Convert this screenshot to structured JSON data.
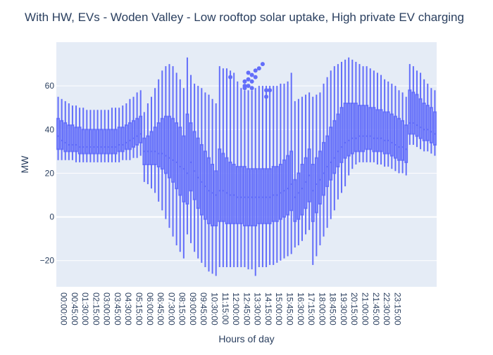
{
  "chart_data": {
    "type": "box",
    "title": "With HW, EVs - Woden Valley - Low rooftop solar uptake, High private EV charging",
    "xlabel": "Hours of day",
    "ylabel": "MW",
    "ylim": [
      -32,
      80
    ],
    "yticks": [
      -20,
      0,
      20,
      40,
      60
    ],
    "grid": true,
    "x_tick_labels": [
      "00:00:00",
      "00:45:00",
      "01:30:00",
      "02:15:00",
      "03:00:00",
      "03:45:00",
      "04:30:00",
      "05:15:00",
      "06:00:00",
      "06:45:00",
      "07:30:00",
      "08:15:00",
      "09:00:00",
      "09:45:00",
      "10:30:00",
      "11:15:00",
      "12:00:00",
      "12:45:00",
      "13:30:00",
      "14:15:00",
      "15:00:00",
      "15:45:00",
      "16:30:00",
      "17:15:00",
      "18:00:00",
      "18:45:00",
      "19:30:00",
      "20:15:00",
      "21:00:00",
      "21:45:00",
      "22:30:00",
      "23:15:00"
    ],
    "x_tick_every": 3,
    "colors": {
      "series": "#636efa",
      "plot_bg": "#e5ecf6",
      "grid": "#ffffff",
      "text": "#2a3f5f"
    },
    "boxes": [
      {
        "min": 26,
        "q1": 31,
        "median": 37,
        "q3": 45,
        "max": 55
      },
      {
        "min": 26,
        "q1": 31,
        "median": 35,
        "q3": 44,
        "max": 54
      },
      {
        "min": 26,
        "q1": 30,
        "median": 34,
        "q3": 43,
        "max": 53
      },
      {
        "min": 26,
        "q1": 30,
        "median": 33,
        "q3": 42,
        "max": 52
      },
      {
        "min": 26,
        "q1": 30,
        "median": 33,
        "q3": 42,
        "max": 51
      },
      {
        "min": 25,
        "q1": 30,
        "median": 33,
        "q3": 41,
        "max": 51
      },
      {
        "min": 25,
        "q1": 29,
        "median": 32,
        "q3": 41,
        "max": 50
      },
      {
        "min": 25,
        "q1": 29,
        "median": 32,
        "q3": 40,
        "max": 50
      },
      {
        "min": 25,
        "q1": 29,
        "median": 32,
        "q3": 40,
        "max": 49
      },
      {
        "min": 25,
        "q1": 29,
        "median": 32,
        "q3": 40,
        "max": 49
      },
      {
        "min": 25,
        "q1": 29,
        "median": 32,
        "q3": 40,
        "max": 49
      },
      {
        "min": 25,
        "q1": 29,
        "median": 32,
        "q3": 40,
        "max": 49
      },
      {
        "min": 25,
        "q1": 29,
        "median": 32,
        "q3": 40,
        "max": 49
      },
      {
        "min": 25,
        "q1": 29,
        "median": 32,
        "q3": 40,
        "max": 49
      },
      {
        "min": 25,
        "q1": 29,
        "median": 32,
        "q3": 40,
        "max": 49
      },
      {
        "min": 25,
        "q1": 29,
        "median": 32,
        "q3": 40,
        "max": 50
      },
      {
        "min": 25,
        "q1": 29,
        "median": 32,
        "q3": 40,
        "max": 50
      },
      {
        "min": 25,
        "q1": 30,
        "median": 33,
        "q3": 41,
        "max": 50
      },
      {
        "min": 26,
        "q1": 30,
        "median": 33,
        "q3": 41,
        "max": 51
      },
      {
        "min": 26,
        "q1": 31,
        "median": 34,
        "q3": 42,
        "max": 52
      },
      {
        "min": 26,
        "q1": 31,
        "median": 35,
        "q3": 43,
        "max": 54
      },
      {
        "min": 27,
        "q1": 32,
        "median": 36,
        "q3": 44,
        "max": 55
      },
      {
        "min": 27,
        "q1": 33,
        "median": 37,
        "q3": 45,
        "max": 57
      },
      {
        "min": 28,
        "q1": 34,
        "median": 38,
        "q3": 46,
        "max": 58
      },
      {
        "min": 16,
        "q1": 24,
        "median": 30,
        "q3": 36,
        "max": 48
      },
      {
        "min": 15,
        "q1": 24,
        "median": 30,
        "q3": 37,
        "max": 52
      },
      {
        "min": 13,
        "q1": 24,
        "median": 30,
        "q3": 39,
        "max": 55
      },
      {
        "min": 11,
        "q1": 24,
        "median": 30,
        "q3": 41,
        "max": 59
      },
      {
        "min": 7,
        "q1": 23,
        "median": 29,
        "q3": 43,
        "max": 63
      },
      {
        "min": 3,
        "q1": 22,
        "median": 29,
        "q3": 45,
        "max": 67
      },
      {
        "min": -1,
        "q1": 20,
        "median": 28,
        "q3": 46,
        "max": 69
      },
      {
        "min": -5,
        "q1": 18,
        "median": 27,
        "q3": 46,
        "max": 70
      },
      {
        "min": -9,
        "q1": 16,
        "median": 26,
        "q3": 45,
        "max": 69
      },
      {
        "min": -13,
        "q1": 13,
        "median": 25,
        "q3": 43,
        "max": 66
      },
      {
        "min": -16,
        "q1": 10,
        "median": 23,
        "q3": 41,
        "max": 63
      },
      {
        "min": -19,
        "q1": 7,
        "median": 22,
        "q3": 37,
        "max": 59
      },
      {
        "min": -8,
        "q1": 6,
        "median": 20,
        "q3": 47,
        "max": 73
      },
      {
        "min": -12,
        "q1": 12,
        "median": 25,
        "q3": 43,
        "max": 65
      },
      {
        "min": -16,
        "q1": 8,
        "median": 21,
        "q3": 39,
        "max": 61
      },
      {
        "min": -19,
        "q1": 4,
        "median": 18,
        "q3": 36,
        "max": 60
      },
      {
        "min": -21,
        "q1": 1,
        "median": 16,
        "q3": 33,
        "max": 59
      },
      {
        "min": -23,
        "q1": -1,
        "median": 14,
        "q3": 30,
        "max": 57
      },
      {
        "min": -25,
        "q1": -3,
        "median": 12,
        "q3": 27,
        "max": 56
      },
      {
        "min": -26,
        "q1": -4,
        "median": 11,
        "q3": 24,
        "max": 54
      },
      {
        "min": -27,
        "q1": -4,
        "median": 10,
        "q3": 21,
        "max": 52
      },
      {
        "min": -23,
        "q1": -2,
        "median": 12,
        "q3": 31,
        "max": 69
      },
      {
        "min": -23,
        "q1": -2,
        "median": 12,
        "q3": 29,
        "max": 68
      },
      {
        "min": -23,
        "q1": -3,
        "median": 11,
        "q3": 27,
        "max": 68
      },
      {
        "min": -23,
        "q1": -3,
        "median": 10,
        "q3": 25,
        "max": 67
      },
      {
        "min": -23,
        "q1": -3,
        "median": 10,
        "q3": 24,
        "max": 66
      },
      {
        "min": -23,
        "q1": -3,
        "median": 9,
        "q3": 23,
        "max": 62
      },
      {
        "min": -23,
        "q1": -3,
        "median": 9,
        "q3": 23,
        "max": 59
      },
      {
        "min": -23,
        "q1": -4,
        "median": 9,
        "q3": 23,
        "max": 58
      },
      {
        "min": -24,
        "q1": -4,
        "median": 9,
        "q3": 22,
        "max": 58
      },
      {
        "min": -24,
        "q1": -4,
        "median": 9,
        "q3": 22,
        "max": 58
      },
      {
        "min": -27,
        "q1": -4,
        "median": 9,
        "q3": 22,
        "max": 59
      },
      {
        "min": -23,
        "q1": -3,
        "median": 9,
        "q3": 22,
        "max": 60
      },
      {
        "min": -23,
        "q1": -3,
        "median": 9,
        "q3": 22,
        "max": 60
      },
      {
        "min": -23,
        "q1": -3,
        "median": 9,
        "q3": 22,
        "max": 60
      },
      {
        "min": -22,
        "q1": -3,
        "median": 9,
        "q3": 22,
        "max": 60
      },
      {
        "min": -22,
        "q1": -2,
        "median": 10,
        "q3": 23,
        "max": 60
      },
      {
        "min": -21,
        "q1": -2,
        "median": 10,
        "q3": 23,
        "max": 60
      },
      {
        "min": -20,
        "q1": -1,
        "median": 11,
        "q3": 24,
        "max": 61
      },
      {
        "min": -19,
        "q1": 0,
        "median": 12,
        "q3": 26,
        "max": 61
      },
      {
        "min": -18,
        "q1": 1,
        "median": 13,
        "q3": 28,
        "max": 62
      },
      {
        "min": -17,
        "q1": 3,
        "median": 15,
        "q3": 30,
        "max": 66
      },
      {
        "min": -14,
        "q1": -2,
        "median": 9,
        "q3": 17,
        "max": 53
      },
      {
        "min": -13,
        "q1": -1,
        "median": 11,
        "q3": 20,
        "max": 54
      },
      {
        "min": -11,
        "q1": 1,
        "median": 13,
        "q3": 24,
        "max": 55
      },
      {
        "min": -8,
        "q1": 4,
        "median": 16,
        "q3": 27,
        "max": 56
      },
      {
        "min": -6,
        "q1": 7,
        "median": 19,
        "q3": 31,
        "max": 57
      },
      {
        "min": -22,
        "q1": -2,
        "median": 12,
        "q3": 24,
        "max": 55
      },
      {
        "min": -18,
        "q1": 2,
        "median": 15,
        "q3": 27,
        "max": 56
      },
      {
        "min": -13,
        "q1": 6,
        "median": 17,
        "q3": 30,
        "max": 57
      },
      {
        "min": -9,
        "q1": 10,
        "median": 20,
        "q3": 34,
        "max": 61
      },
      {
        "min": -5,
        "q1": 14,
        "median": 23,
        "q3": 37,
        "max": 64
      },
      {
        "min": -1,
        "q1": 17,
        "median": 25,
        "q3": 41,
        "max": 67
      },
      {
        "min": 3,
        "q1": 20,
        "median": 27,
        "q3": 44,
        "max": 69
      },
      {
        "min": 8,
        "q1": 23,
        "median": 30,
        "q3": 47,
        "max": 70
      },
      {
        "min": 11,
        "q1": 25,
        "median": 32,
        "q3": 50,
        "max": 71
      },
      {
        "min": 14,
        "q1": 27,
        "median": 34,
        "q3": 52,
        "max": 72
      },
      {
        "min": 19,
        "q1": 28,
        "median": 35,
        "q3": 52,
        "max": 73
      },
      {
        "min": 22,
        "q1": 29,
        "median": 36,
        "q3": 52,
        "max": 72
      },
      {
        "min": 24,
        "q1": 30,
        "median": 36,
        "q3": 52,
        "max": 71
      },
      {
        "min": 25,
        "q1": 30,
        "median": 37,
        "q3": 51,
        "max": 70
      },
      {
        "min": 25,
        "q1": 30,
        "median": 37,
        "q3": 51,
        "max": 69
      },
      {
        "min": 25,
        "q1": 31,
        "median": 37,
        "q3": 51,
        "max": 69
      },
      {
        "min": 25,
        "q1": 31,
        "median": 37,
        "q3": 50,
        "max": 68
      },
      {
        "min": 25,
        "q1": 30,
        "median": 36,
        "q3": 50,
        "max": 67
      },
      {
        "min": 24,
        "q1": 30,
        "median": 36,
        "q3": 49,
        "max": 66
      },
      {
        "min": 24,
        "q1": 30,
        "median": 36,
        "q3": 49,
        "max": 65
      },
      {
        "min": 23,
        "q1": 29,
        "median": 35,
        "q3": 48,
        "max": 63
      },
      {
        "min": 23,
        "q1": 29,
        "median": 35,
        "q3": 48,
        "max": 62
      },
      {
        "min": 22,
        "q1": 28,
        "median": 34,
        "q3": 47,
        "max": 61
      },
      {
        "min": 21,
        "q1": 27,
        "median": 33,
        "q3": 46,
        "max": 60
      },
      {
        "min": 20,
        "q1": 26,
        "median": 32,
        "q3": 45,
        "max": 58
      },
      {
        "min": 20,
        "q1": 26,
        "median": 32,
        "q3": 44,
        "max": 57
      },
      {
        "min": 19,
        "q1": 25,
        "median": 31,
        "q3": 42,
        "max": 55
      },
      {
        "min": 33,
        "q1": 38,
        "median": 43,
        "q3": 58,
        "max": 70
      },
      {
        "min": 33,
        "q1": 38,
        "median": 43,
        "q3": 57,
        "max": 69
      },
      {
        "min": 32,
        "q1": 37,
        "median": 42,
        "q3": 56,
        "max": 67
      },
      {
        "min": 31,
        "q1": 36,
        "median": 41,
        "q3": 54,
        "max": 66
      },
      {
        "min": 30,
        "q1": 35,
        "median": 40,
        "q3": 52,
        "max": 63
      },
      {
        "min": 30,
        "q1": 35,
        "median": 40,
        "q3": 51,
        "max": 61
      },
      {
        "min": 29,
        "q1": 34,
        "median": 39,
        "q3": 50,
        "max": 59
      },
      {
        "min": 28,
        "q1": 33,
        "median": 38,
        "q3": 48,
        "max": 58
      }
    ],
    "outliers": [
      {
        "box": 48,
        "y": 64
      },
      {
        "box": 52,
        "y": 62
      },
      {
        "box": 52,
        "y": 60
      },
      {
        "box": 52,
        "y": 59
      },
      {
        "box": 53,
        "y": 66
      },
      {
        "box": 53,
        "y": 63
      },
      {
        "box": 53,
        "y": 60
      },
      {
        "box": 54,
        "y": 65
      },
      {
        "box": 54,
        "y": 62
      },
      {
        "box": 54,
        "y": 59
      },
      {
        "box": 55,
        "y": 67
      },
      {
        "box": 55,
        "y": 64
      },
      {
        "box": 56,
        "y": 68
      },
      {
        "box": 57,
        "y": 70
      },
      {
        "box": 58,
        "y": 58
      },
      {
        "box": 58,
        "y": 55
      },
      {
        "box": 59,
        "y": 58
      }
    ]
  }
}
